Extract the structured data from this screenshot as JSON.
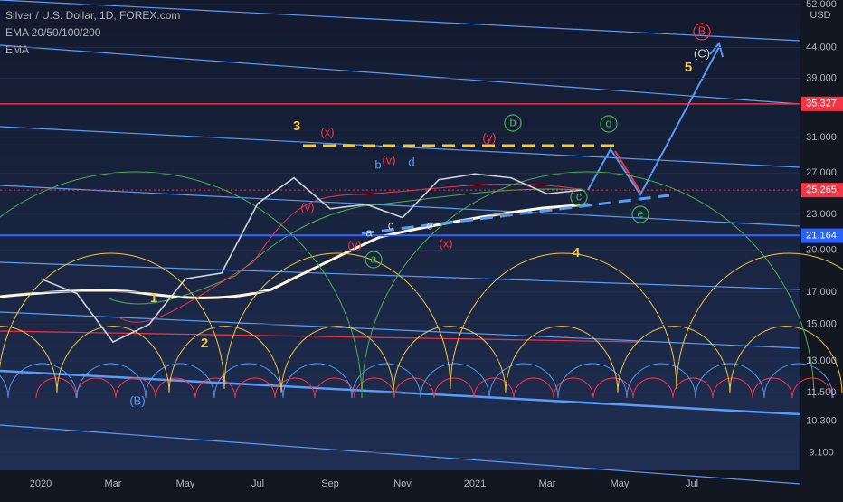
{
  "header": {
    "symbol": "Silver / U.S. Dollar, 1D, FOREX.com",
    "study1": "EMA 20/50/100/200",
    "study2": "EMA",
    "currency": "USD"
  },
  "chart_data": {
    "type": "line",
    "categories": [
      "2020",
      null,
      "Mar",
      null,
      "May",
      null,
      "Jul",
      null,
      "Sep",
      null,
      "Nov",
      null,
      "2021",
      null,
      "Mar",
      null,
      "May",
      null,
      "Jul"
    ],
    "series": [
      {
        "color": "#d1d4dc",
        "values": [
          17.9,
          16.9,
          14.0,
          15.0,
          17.9,
          18.3,
          24.0,
          26.5,
          23.5,
          23.9,
          22.7,
          26.3,
          26.9,
          26.5,
          24.9,
          25.3,
          null,
          null,
          null
        ]
      }
    ],
    "log_scale": true,
    "ylim": [
      8.5,
      52.9
    ],
    "yticks": [
      {
        "value": 9.1,
        "label": "9.100"
      },
      {
        "value": 10.3,
        "label": "10.300"
      },
      {
        "value": 11.5,
        "label": "11.500"
      },
      {
        "value": 13,
        "label": "13.000"
      },
      {
        "value": 15,
        "label": "15.000"
      },
      {
        "value": 17,
        "label": "17.000"
      },
      {
        "value": 20,
        "label": "20.000"
      },
      {
        "value": 23,
        "label": "23.000"
      },
      {
        "value": 27,
        "label": "27.000"
      },
      {
        "value": 31,
        "label": "31.000"
      },
      {
        "value": 39,
        "label": "39.000"
      },
      {
        "value": 44,
        "label": "44.000"
      },
      {
        "value": 52,
        "label": "52.000"
      }
    ],
    "price_lines": [
      {
        "value": 35.327,
        "label": "35.327",
        "color": "#f23645"
      },
      {
        "value": 25.265,
        "label": "25.265",
        "color": "#f23645"
      },
      {
        "value": 21.164,
        "label": "21.164",
        "color": "#2962ff"
      }
    ],
    "annotations": [
      {
        "text": "3",
        "color": "#f5c842"
      },
      {
        "text": "(x)",
        "color": "#f23645"
      },
      {
        "text": "b",
        "color": "#5b9cf6"
      },
      {
        "text": "(v)",
        "color": "#f23645"
      },
      {
        "text": "d",
        "color": "#5b9cf6"
      },
      {
        "text": "(y)",
        "color": "#f23645"
      },
      {
        "text": "b",
        "color": "#4caf50"
      },
      {
        "text": "d",
        "color": "#4caf50"
      },
      {
        "text": "B",
        "color": "#f23645"
      },
      {
        "text": "5",
        "color": "#f5c842"
      },
      {
        "text": "(C)",
        "color": "#d1d4dc"
      },
      {
        "text": "1",
        "color": "#f5c842"
      },
      {
        "text": "2",
        "color": "#f5c842"
      },
      {
        "text": "(B)",
        "color": "#5b9cf6"
      },
      {
        "text": "a",
        "color": "#d1d4dc"
      },
      {
        "text": "c",
        "color": "#d1d4dc"
      },
      {
        "text": "e",
        "color": "#d1d4dc"
      },
      {
        "text": "(x)",
        "color": "#f23645"
      },
      {
        "text": "(v)",
        "color": "#f23645"
      },
      {
        "text": "(v)",
        "color": "#f23645"
      },
      {
        "text": "a",
        "color": "#4caf50"
      },
      {
        "text": "c",
        "color": "#4caf50"
      },
      {
        "text": "e",
        "color": "#4caf50"
      },
      {
        "text": "4",
        "color": "#f5c842"
      }
    ]
  }
}
